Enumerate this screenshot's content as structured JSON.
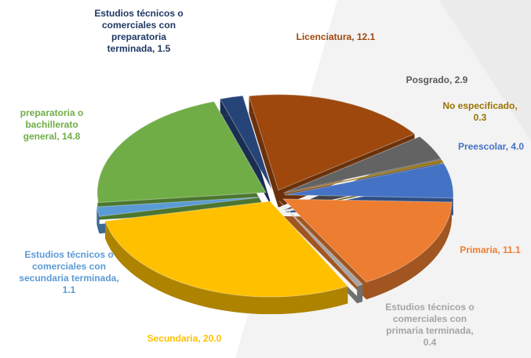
{
  "chart_data": {
    "type": "pie",
    "categories": [
      "Licenciatura",
      "Posgrado",
      "No especificado",
      "Preescolar",
      "Primaria",
      "Estudios técnicos o comerciales con primaria terminada",
      "Secundaria",
      "Estudios técnicos o comerciales con secundaria terminada",
      "preparatoria o bachillerato general",
      "Estudios técnicos o comerciales con preparatoria terminada"
    ],
    "values": [
      12.1,
      2.9,
      0.3,
      4.0,
      11.1,
      0.4,
      20.0,
      1.1,
      14.8,
      1.5
    ],
    "value_labels": [
      "12.1",
      "2.9",
      "0.3",
      "4.0",
      "11.1",
      "0.4",
      "20.0",
      "1.1",
      "14.8",
      "1.5"
    ],
    "colors": [
      "#9e480e",
      "#636363",
      "#997300",
      "#4472c4",
      "#ed7d31",
      "#a5a5a5",
      "#ffc000",
      "#5b9bd5",
      "#70ad47",
      "#264478"
    ]
  }
}
